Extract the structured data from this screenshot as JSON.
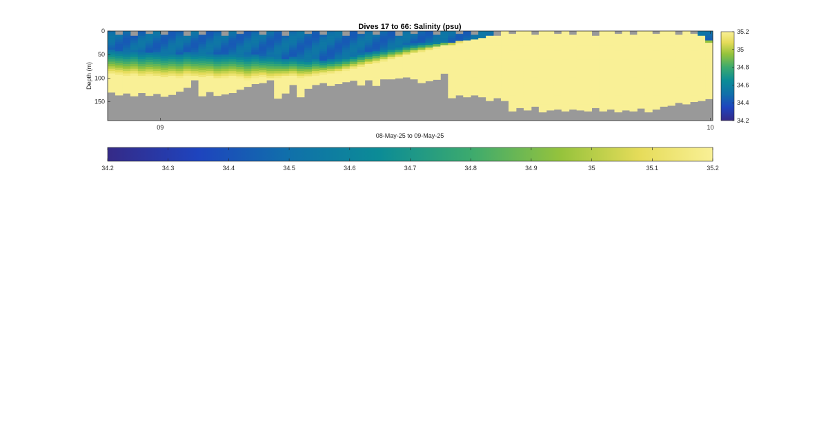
{
  "chart_data": {
    "type": "heatmap",
    "title": "Dives 17 to 66: Salinity (psu)",
    "xlabel": "08-May-25 to 09-May-25",
    "ylabel": "Depth (m)",
    "x_ticks": [
      "09",
      "10"
    ],
    "y_ticks": [
      "0",
      "50",
      "100",
      "150"
    ],
    "ylim": [
      0,
      190
    ],
    "y_reversed": true,
    "clim": [
      34.2,
      35.2
    ],
    "colormap": "parula",
    "no_data_color": "#999999",
    "colorbar_side": {
      "ticks": [
        "34.2",
        "34.4",
        "34.6",
        "34.8",
        "35",
        "35.2"
      ]
    },
    "colorbar_bottom": {
      "ticks": [
        "34.2",
        "34.3",
        "34.4",
        "34.5",
        "34.6",
        "34.7",
        "34.8",
        "34.9",
        "35",
        "35.1",
        "35.2"
      ]
    },
    "dives": [
      17,
      66
    ],
    "profiles": {
      "bottom_depth_m": [
        130,
        136,
        132,
        138,
        131,
        137,
        133,
        139,
        135,
        128,
        120,
        104,
        138,
        129,
        137,
        134,
        131,
        124,
        118,
        112,
        110,
        104,
        143,
        132,
        114,
        140,
        122,
        114,
        110,
        116,
        112,
        108,
        105,
        115,
        104,
        116,
        102,
        102,
        100,
        98,
        102,
        110,
        106,
        103,
        90,
        142,
        136,
        140,
        136,
        140,
        148,
        142,
        148,
        170,
        163,
        168,
        160,
        172,
        168,
        166,
        170,
        166,
        168,
        170,
        163,
        170,
        166,
        172,
        168,
        170,
        164,
        172,
        166,
        160,
        158,
        152,
        155,
        150,
        148,
        144
      ],
      "fresh_core_base_m": [
        40,
        42,
        44,
        42,
        46,
        44,
        45,
        47,
        46,
        48,
        45,
        47,
        46,
        48,
        50,
        49,
        48,
        50,
        52,
        50,
        54,
        52,
        55,
        58,
        56,
        58,
        60,
        57,
        62,
        60,
        58,
        55,
        52,
        48,
        45,
        42,
        40,
        36,
        34,
        30,
        28,
        26,
        25,
        24,
        22,
        26,
        20,
        18,
        16,
        14,
        12,
        10,
        8,
        6,
        5,
        4,
        0,
        0,
        0,
        0,
        0,
        0,
        0,
        0,
        0,
        0,
        0,
        0,
        0,
        0,
        0,
        0,
        0,
        0,
        0,
        0,
        0,
        0,
        8,
        18
      ],
      "mixed_layer_base_m": [
        92,
        94,
        96,
        94,
        98,
        96,
        98,
        100,
        98,
        100,
        96,
        98,
        100,
        98,
        102,
        100,
        98,
        100,
        104,
        100,
        98,
        102,
        100,
        98,
        96,
        100,
        98,
        95,
        92,
        90,
        88,
        84,
        80,
        76,
        72,
        68,
        64,
        60,
        56,
        52,
        48,
        44,
        40,
        36,
        32,
        28,
        24,
        20,
        16,
        12,
        8,
        4,
        0,
        0,
        0,
        0,
        0,
        0,
        0,
        0,
        0,
        0,
        0,
        0,
        0,
        0,
        0,
        0,
        0,
        0,
        0,
        0,
        0,
        0,
        0,
        0,
        0,
        0,
        10,
        25
      ],
      "surface_gap_m": [
        0,
        8,
        0,
        10,
        0,
        6,
        0,
        8,
        0,
        0,
        10,
        0,
        8,
        0,
        0,
        10,
        0,
        6,
        0,
        0,
        8,
        0,
        0,
        10,
        0,
        0,
        6,
        0,
        8,
        0,
        0,
        10,
        0,
        6,
        0,
        8,
        0,
        0,
        10,
        0,
        6,
        0,
        0,
        8,
        0,
        0,
        6,
        0,
        8,
        0,
        0,
        10,
        0,
        6,
        0,
        0,
        8,
        0,
        0,
        6,
        0,
        8,
        0,
        0,
        10,
        0,
        0,
        6,
        0,
        8,
        0,
        0,
        6,
        0,
        0,
        8,
        0,
        6,
        0,
        0
      ]
    }
  }
}
